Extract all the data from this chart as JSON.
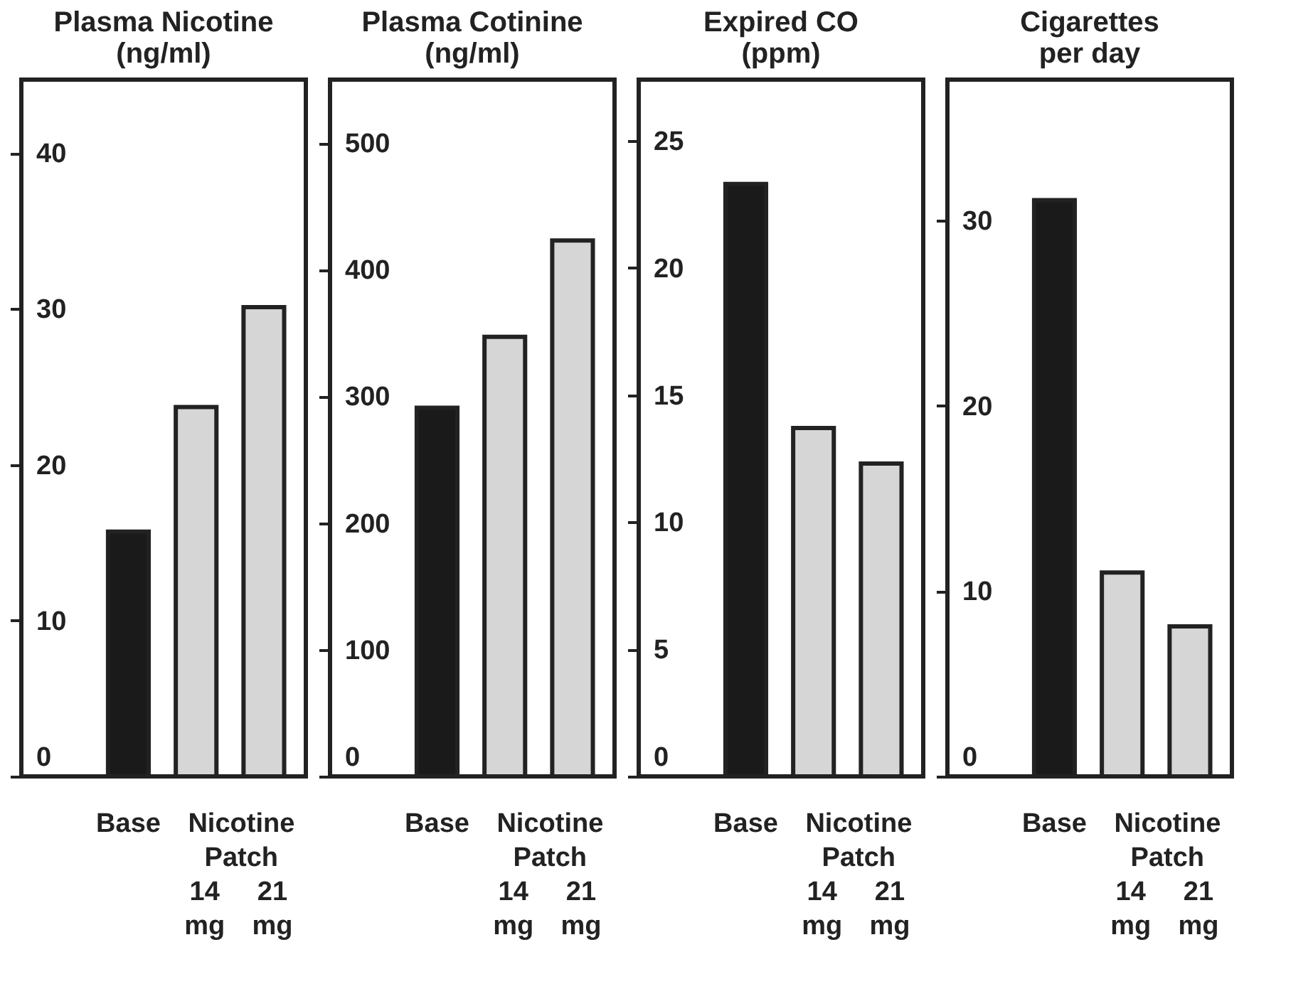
{
  "chart_data": [
    {
      "type": "bar",
      "title": "Plasma Nicotine\n(ng/ml)",
      "xlabel": "Nicotine\nPatch",
      "categories": [
        "Base",
        "14\nmg",
        "21\nmg"
      ],
      "values": [
        15.7,
        23.7,
        30.1
      ],
      "colors": [
        "#1a1a1a",
        "#d6d6d6",
        "#d6d6d6"
      ],
      "ylim": [
        0,
        44.7
      ],
      "yticks": [
        0,
        10,
        20,
        30,
        40
      ],
      "grid": false
    },
    {
      "type": "bar",
      "title": "Plasma Cotinine\n(ng/ml)",
      "xlabel": "Nicotine\nPatch",
      "categories": [
        "Base",
        "14\nmg",
        "21\nmg"
      ],
      "values": [
        291,
        347,
        423
      ],
      "colors": [
        "#1a1a1a",
        "#d6d6d6",
        "#d6d6d6"
      ],
      "ylim": [
        0,
        550
      ],
      "yticks": [
        0,
        100,
        200,
        300,
        400,
        500
      ],
      "grid": false
    },
    {
      "type": "bar",
      "title": "Expired CO\n(ppm)",
      "xlabel": "Nicotine\nPatch",
      "categories": [
        "Base",
        "14\nmg",
        "21\nmg"
      ],
      "values": [
        23.3,
        13.7,
        12.3
      ],
      "colors": [
        "#1a1a1a",
        "#d6d6d6",
        "#d6d6d6"
      ],
      "ylim": [
        0,
        27.4
      ],
      "yticks": [
        0,
        5,
        10,
        15,
        20,
        25
      ],
      "grid": false
    },
    {
      "type": "bar",
      "title": "Cigarettes\nper day",
      "xlabel": "Nicotine\nPatch",
      "categories": [
        "Base",
        "14\nmg",
        "21\nmg"
      ],
      "values": [
        31.1,
        11.0,
        8.1
      ],
      "colors": [
        "#1a1a1a",
        "#d6d6d6",
        "#d6d6d6"
      ],
      "ylim": [
        0,
        37.6
      ],
      "yticks": [
        0,
        10,
        20,
        30
      ],
      "grid": false
    }
  ]
}
